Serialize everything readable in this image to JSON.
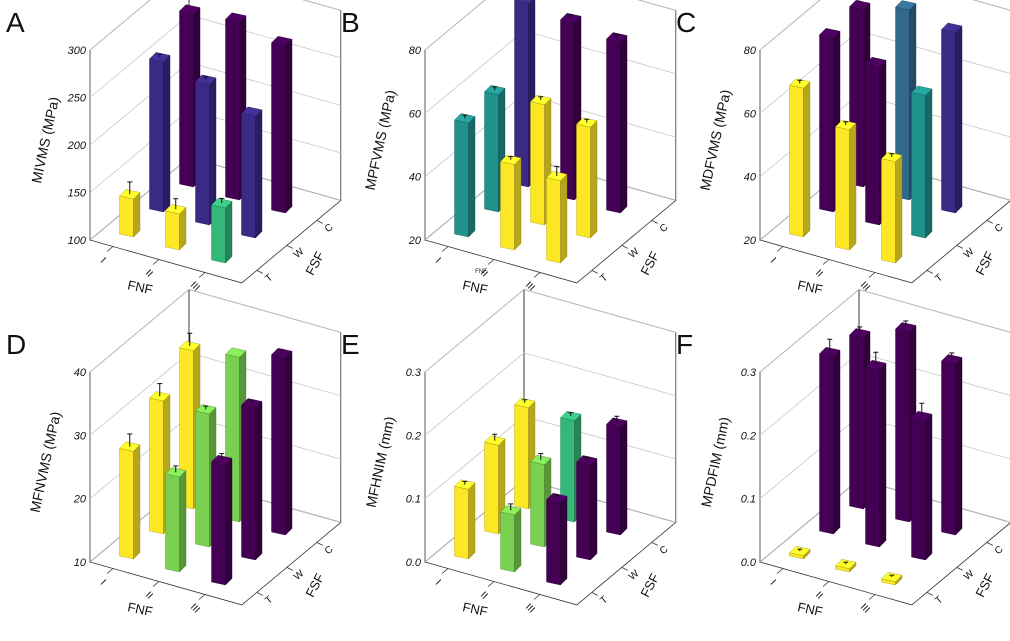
{
  "colors": {
    "axis": "#333333",
    "grid": "#c8c8c8",
    "errorbar": "#111111"
  },
  "chart_data": [
    {
      "id": "A",
      "type": "bar3d",
      "letter": "A",
      "ylabel": "MIVMS (MPa)",
      "ylim": [
        100,
        300
      ],
      "yticks": [
        "100",
        "150",
        "200",
        "250",
        "300"
      ],
      "ytick_values": [
        100,
        150,
        200,
        250,
        300
      ],
      "xlabel": "FNF",
      "xcategories": [
        "I",
        "II",
        "III"
      ],
      "zlabel": "FSF",
      "zcategories": [
        "T",
        "W",
        "C"
      ],
      "note": "",
      "bars": [
        {
          "fnf": "I",
          "fsf": "C",
          "value": 282,
          "err": 0,
          "color": "#440154"
        },
        {
          "fnf": "II",
          "fsf": "C",
          "value": 287,
          "err": 0,
          "color": "#440154"
        },
        {
          "fnf": "III",
          "fsf": "C",
          "value": 276,
          "err": 0,
          "color": "#440154"
        },
        {
          "fnf": "I",
          "fsf": "W",
          "value": 258,
          "err": 3,
          "color": "#3b2a85"
        },
        {
          "fnf": "II",
          "fsf": "W",
          "value": 248,
          "err": 3,
          "color": "#3b2a85"
        },
        {
          "fnf": "III",
          "fsf": "W",
          "value": 228,
          "err": 0,
          "color": "#3b2a85"
        },
        {
          "fnf": "I",
          "fsf": "T",
          "value": 140,
          "err": 13,
          "color": "#fde725"
        },
        {
          "fnf": "II",
          "fsf": "T",
          "value": 138,
          "err": 11,
          "color": "#fde725"
        },
        {
          "fnf": "III",
          "fsf": "T",
          "value": 158,
          "err": 5,
          "color": "#35b779"
        }
      ]
    },
    {
      "id": "B",
      "type": "bar3d",
      "letter": "B",
      "ylabel": "MPFVMS (MPa)",
      "ylim": [
        20,
        80
      ],
      "yticks": [
        "20",
        "40",
        "60",
        "80"
      ],
      "ytick_values": [
        20,
        40,
        60,
        80
      ],
      "xlabel": "FNF",
      "xcategories": [
        "I",
        "II",
        "III"
      ],
      "zlabel": "FSF",
      "zcategories": [
        "T",
        "W",
        "C"
      ],
      "note": "FNF",
      "bars": [
        {
          "fnf": "I",
          "fsf": "C",
          "value": 78,
          "err": 1,
          "color": "#3b2a85"
        },
        {
          "fnf": "II",
          "fsf": "C",
          "value": 76,
          "err": 1,
          "color": "#440154"
        },
        {
          "fnf": "III",
          "fsf": "C",
          "value": 74,
          "err": 1,
          "color": "#440154"
        },
        {
          "fnf": "I",
          "fsf": "W",
          "value": 57,
          "err": 1,
          "color": "#21918c"
        },
        {
          "fnf": "II",
          "fsf": "W",
          "value": 58,
          "err": 1,
          "color": "#fde725"
        },
        {
          "fnf": "III",
          "fsf": "W",
          "value": 55,
          "err": 1,
          "color": "#fde725"
        },
        {
          "fnf": "I",
          "fsf": "T",
          "value": 56,
          "err": 1,
          "color": "#21918c"
        },
        {
          "fnf": "II",
          "fsf": "T",
          "value": 47,
          "err": 1,
          "color": "#fde725"
        },
        {
          "fnf": "III",
          "fsf": "T",
          "value": 46,
          "err": 3,
          "color": "#fde725"
        }
      ]
    },
    {
      "id": "C",
      "type": "bar3d",
      "letter": "C",
      "ylabel": "MDFVMS (MPa)",
      "ylim": [
        20,
        80
      ],
      "yticks": [
        "20",
        "40",
        "60",
        "80"
      ],
      "ytick_values": [
        20,
        40,
        60,
        80
      ],
      "xlabel": "FNF",
      "xcategories": [
        "I",
        "II",
        "III"
      ],
      "zlabel": "FSF",
      "zcategories": [
        "T",
        "W",
        "C"
      ],
      "note": "",
      "bars": [
        {
          "fnf": "I",
          "fsf": "C",
          "value": 76,
          "err": 0,
          "color": "#440154"
        },
        {
          "fnf": "II",
          "fsf": "C",
          "value": 80,
          "err": 0,
          "color": "#31688e"
        },
        {
          "fnf": "III",
          "fsf": "C",
          "value": 77,
          "err": 0,
          "color": "#3b2a85"
        },
        {
          "fnf": "I",
          "fsf": "W",
          "value": 75,
          "err": 0,
          "color": "#440154"
        },
        {
          "fnf": "II",
          "fsf": "W",
          "value": 70,
          "err": 0,
          "color": "#440154"
        },
        {
          "fnf": "III",
          "fsf": "W",
          "value": 65,
          "err": 0,
          "color": "#21918c"
        },
        {
          "fnf": "I",
          "fsf": "T",
          "value": 67,
          "err": 1,
          "color": "#fde725"
        },
        {
          "fnf": "II",
          "fsf": "T",
          "value": 58,
          "err": 1,
          "color": "#fde725"
        },
        {
          "fnf": "III",
          "fsf": "T",
          "value": 52,
          "err": 1,
          "color": "#fde725"
        }
      ]
    },
    {
      "id": "D",
      "type": "bar3d",
      "letter": "D",
      "ylabel": "MFNVMS (MPa)",
      "ylim": [
        10,
        40
      ],
      "yticks": [
        "10",
        "20",
        "30",
        "40"
      ],
      "ytick_values": [
        10,
        20,
        30,
        40
      ],
      "xlabel": "FNF",
      "xcategories": [
        "I",
        "II",
        "III"
      ],
      "zlabel": "FSF",
      "zcategories": [
        "T",
        "W",
        "C"
      ],
      "note": "",
      "bars": [
        {
          "fnf": "I",
          "fsf": "C",
          "value": 35,
          "err": 2,
          "color": "#fde725"
        },
        {
          "fnf": "II",
          "fsf": "C",
          "value": 36,
          "err": 0,
          "color": "#7ad151"
        },
        {
          "fnf": "III",
          "fsf": "C",
          "value": 38,
          "err": 0.5,
          "color": "#440154"
        },
        {
          "fnf": "I",
          "fsf": "W",
          "value": 31,
          "err": 2,
          "color": "#fde725"
        },
        {
          "fnf": "II",
          "fsf": "W",
          "value": 31,
          "err": 0.5,
          "color": "#7ad151"
        },
        {
          "fnf": "III",
          "fsf": "W",
          "value": 34,
          "err": 0.5,
          "color": "#440154"
        },
        {
          "fnf": "I",
          "fsf": "T",
          "value": 27,
          "err": 2,
          "color": "#fde725"
        },
        {
          "fnf": "II",
          "fsf": "T",
          "value": 25,
          "err": 1,
          "color": "#7ad151"
        },
        {
          "fnf": "III",
          "fsf": "T",
          "value": 29,
          "err": 1,
          "color": "#440154"
        }
      ]
    },
    {
      "id": "E",
      "type": "bar3d",
      "letter": "E",
      "ylabel": "MFHNIM (mm)",
      "ylim": [
        0,
        0.3
      ],
      "yticks": [
        "0.0",
        "0.1",
        "0.2",
        "0.3"
      ],
      "ytick_values": [
        0,
        0.1,
        0.2,
        0.3
      ],
      "xlabel": "FNF",
      "xcategories": [
        "I",
        "II",
        "III"
      ],
      "zlabel": "FSF",
      "zcategories": [
        "T",
        "W",
        "C"
      ],
      "note": "",
      "bars": [
        {
          "fnf": "I",
          "fsf": "C",
          "value": 0.16,
          "err": 0.005,
          "color": "#fde725"
        },
        {
          "fnf": "II",
          "fsf": "C",
          "value": 0.16,
          "err": 0.005,
          "color": "#35b779"
        },
        {
          "fnf": "III",
          "fsf": "C",
          "value": 0.17,
          "err": 0.01,
          "color": "#440154"
        },
        {
          "fnf": "I",
          "fsf": "W",
          "value": 0.14,
          "err": 0.01,
          "color": "#fde725"
        },
        {
          "fnf": "II",
          "fsf": "W",
          "value": 0.13,
          "err": 0.01,
          "color": "#7ad151"
        },
        {
          "fnf": "III",
          "fsf": "W",
          "value": 0.15,
          "err": 0.005,
          "color": "#440154"
        },
        {
          "fnf": "I",
          "fsf": "T",
          "value": 0.11,
          "err": 0.005,
          "color": "#fde725"
        },
        {
          "fnf": "II",
          "fsf": "T",
          "value": 0.09,
          "err": 0.01,
          "color": "#7ad151"
        },
        {
          "fnf": "III",
          "fsf": "T",
          "value": 0.13,
          "err": 0.005,
          "color": "#440154"
        }
      ]
    },
    {
      "id": "F",
      "type": "bar3d",
      "letter": "F",
      "ylabel": "MPDFIM (mm)",
      "ylim": [
        0,
        0.3
      ],
      "yticks": [
        "0.0",
        "0.1",
        "0.2",
        "0.3"
      ],
      "ytick_values": [
        0,
        0.1,
        0.2,
        0.3
      ],
      "xlabel": "FNF",
      "xcategories": [
        "I",
        "II",
        "III"
      ],
      "zlabel": "FSF",
      "zcategories": [
        "T",
        "W",
        "C"
      ],
      "note": "",
      "bars": [
        {
          "fnf": "I",
          "fsf": "C",
          "value": 0.27,
          "err": 0.01,
          "color": "#440154"
        },
        {
          "fnf": "II",
          "fsf": "C",
          "value": 0.3,
          "err": 0.01,
          "color": "#440154"
        },
        {
          "fnf": "III",
          "fsf": "C",
          "value": 0.27,
          "err": 0.01,
          "color": "#440154"
        },
        {
          "fnf": "I",
          "fsf": "W",
          "value": 0.28,
          "err": 0.02,
          "color": "#440154"
        },
        {
          "fnf": "II",
          "fsf": "W",
          "value": 0.28,
          "err": 0.02,
          "color": "#440154"
        },
        {
          "fnf": "III",
          "fsf": "W",
          "value": 0.22,
          "err": 0.02,
          "color": "#440154"
        },
        {
          "fnf": "I",
          "fsf": "T",
          "value": 0.005,
          "err": 0.003,
          "color": "#fde725"
        },
        {
          "fnf": "II",
          "fsf": "T",
          "value": 0.005,
          "err": 0.003,
          "color": "#fde725"
        },
        {
          "fnf": "III",
          "fsf": "T",
          "value": 0.005,
          "err": 0.003,
          "color": "#fde725"
        }
      ]
    }
  ]
}
